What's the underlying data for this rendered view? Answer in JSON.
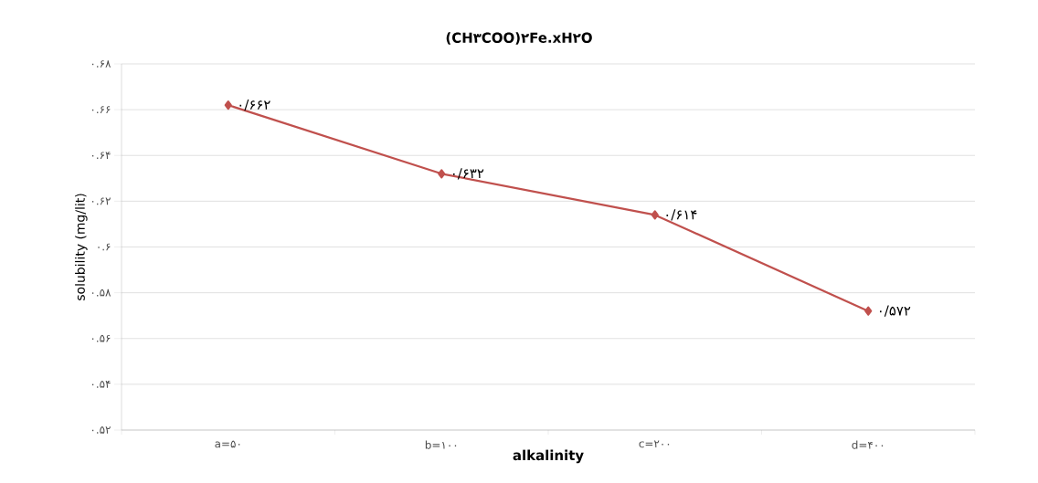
{
  "chart_data": {
    "type": "line",
    "title": "(CH۳COO)۲Fe.xH۲O",
    "xlabel": "alkalinity",
    "ylabel": "solubility (mg/lit)",
    "categories": [
      "a=۵۰",
      "b=۱۰۰",
      "c=۲۰۰",
      "d=۴۰۰"
    ],
    "values": [
      0.662,
      0.632,
      0.614,
      0.572
    ],
    "value_labels": [
      "۰/۶۶۲",
      "۰/۶۳۲",
      "۰/۶۱۴",
      "۰/۵۷۲"
    ],
    "color": "#c0504d",
    "marker": "diamond",
    "line_style": "solid",
    "grid": "y",
    "ylim": [
      0.52,
      0.68
    ],
    "yticks": [
      {
        "value": 0.52,
        "label": "۰.۵۲"
      },
      {
        "value": 0.54,
        "label": "۰.۵۴"
      },
      {
        "value": 0.56,
        "label": "۰.۵۶"
      },
      {
        "value": 0.58,
        "label": "۰.۵۸"
      },
      {
        "value": 0.6,
        "label": "۰.۶"
      },
      {
        "value": 0.62,
        "label": "۰.۶۲"
      },
      {
        "value": 0.64,
        "label": "۰.۶۴"
      },
      {
        "value": 0.66,
        "label": "۰.۶۶"
      },
      {
        "value": 0.68,
        "label": "۰.۶۸"
      }
    ]
  }
}
